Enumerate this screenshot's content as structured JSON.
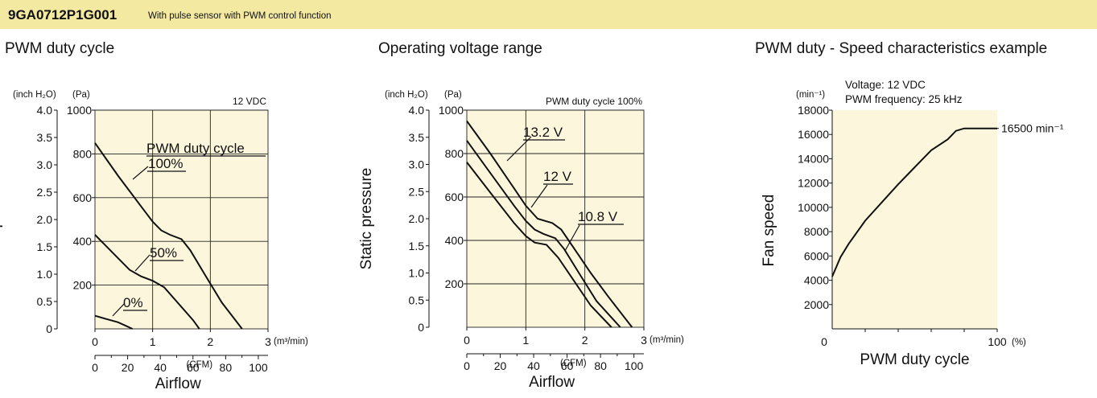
{
  "header": {
    "model": "9GA0712P1G001",
    "description": "With pulse sensor with PWM control function"
  },
  "colors": {
    "banner": "#f4e9a1",
    "plot_bg": "#fcf7dc",
    "line": "#111111"
  },
  "chart_data": [
    {
      "type": "line",
      "title": "PWM duty cycle",
      "condition": "12 VDC",
      "xlabel": "Airflow",
      "ylabel": "Static pressure",
      "x_unit_top": "(m³/min)",
      "x_unit_bottom": "(CFM)",
      "y_unit_left": "(inch H₂O)",
      "y_unit_right": "(Pa)",
      "xlim": [
        0,
        3
      ],
      "ylim_pa": [
        0,
        1000
      ],
      "x_ticks_m3": [
        "0",
        "1",
        "2",
        "3"
      ],
      "x_ticks_cfm": [
        "0",
        "20",
        "40",
        "60",
        "80",
        "100"
      ],
      "y_ticks_inch": [
        "0",
        "0.5",
        "1.0",
        "1.5",
        "2.0",
        "2.5",
        "3.0",
        "3.5",
        "4.0"
      ],
      "y_ticks_pa": [
        "200",
        "400",
        "600",
        "800",
        "1000"
      ],
      "legend_title": "PWM duty cycle",
      "series": [
        {
          "name": "100%",
          "x": [
            0,
            0.4,
            0.8,
            1.0,
            1.15,
            1.3,
            1.5,
            1.65,
            1.9,
            2.2,
            2.55
          ],
          "y": [
            850,
            700,
            560,
            490,
            450,
            430,
            410,
            360,
            250,
            120,
            0
          ]
        },
        {
          "name": "50%",
          "x": [
            0,
            0.3,
            0.6,
            0.8,
            1.0,
            1.2,
            1.4,
            1.7,
            1.81
          ],
          "y": [
            430,
            350,
            270,
            240,
            220,
            190,
            130,
            40,
            0
          ]
        },
        {
          "name": "0%",
          "x": [
            0,
            0.2,
            0.4,
            0.55,
            0.65
          ],
          "y": [
            60,
            45,
            30,
            12,
            0
          ]
        }
      ]
    },
    {
      "type": "line",
      "title": "Operating voltage range",
      "condition": "PWM duty cycle 100%",
      "xlabel": "Airflow",
      "ylabel": "Static pressure",
      "x_unit_top": "(m³/min)",
      "x_unit_bottom": "(CFM)",
      "y_unit_left": "(inch H₂O)",
      "y_unit_right": "(Pa)",
      "xlim": [
        0,
        3
      ],
      "ylim_pa": [
        0,
        1000
      ],
      "x_ticks_m3": [
        "0",
        "1",
        "2",
        "3"
      ],
      "x_ticks_cfm": [
        "0",
        "20",
        "40",
        "60",
        "80",
        "100"
      ],
      "y_ticks_inch": [
        "0",
        "0.5",
        "1.0",
        "1.5",
        "2.0",
        "2.5",
        "3.0",
        "3.5",
        "4.0"
      ],
      "y_ticks_pa": [
        "200",
        "400",
        "600",
        "800",
        "1000"
      ],
      "series": [
        {
          "name": "13.2 V",
          "x": [
            0,
            0.4,
            0.8,
            1.0,
            1.2,
            1.45,
            1.6,
            1.8,
            2.1,
            2.4,
            2.8
          ],
          "y": [
            950,
            800,
            640,
            560,
            500,
            480,
            450,
            370,
            250,
            140,
            0
          ]
        },
        {
          "name": "12 V",
          "x": [
            0,
            0.4,
            0.8,
            1.0,
            1.15,
            1.3,
            1.5,
            1.65,
            1.9,
            2.2,
            2.6
          ],
          "y": [
            860,
            710,
            560,
            490,
            450,
            430,
            410,
            360,
            250,
            120,
            0
          ]
        },
        {
          "name": "10.8 V",
          "x": [
            0,
            0.4,
            0.8,
            1.0,
            1.15,
            1.35,
            1.55,
            1.8,
            2.1,
            2.45
          ],
          "y": [
            760,
            620,
            480,
            420,
            390,
            380,
            320,
            220,
            100,
            0
          ]
        }
      ]
    },
    {
      "type": "line",
      "title": "PWM duty - Speed characteristics example",
      "annotation_lines": [
        "Voltage: 12 VDC",
        "PWM frequency: 25 kHz"
      ],
      "xlabel": "PWM duty cycle",
      "ylabel": "Fan speed",
      "x_unit": "(%)",
      "y_unit": "(min⁻¹)",
      "xlim": [
        0,
        100
      ],
      "ylim": [
        0,
        18000
      ],
      "x_ticks": [
        "0",
        "100"
      ],
      "y_ticks": [
        "2000",
        "4000",
        "6000",
        "8000",
        "10000",
        "12000",
        "14000",
        "16000",
        "18000"
      ],
      "end_label": "16500 min⁻¹",
      "series": [
        {
          "name": "",
          "x": [
            0,
            5,
            10,
            20,
            30,
            40,
            50,
            60,
            70,
            75,
            80,
            85,
            90,
            100
          ],
          "y": [
            4300,
            5900,
            7000,
            8900,
            10400,
            11900,
            13300,
            14700,
            15600,
            16300,
            16500,
            16500,
            16500,
            16500
          ]
        }
      ]
    }
  ]
}
